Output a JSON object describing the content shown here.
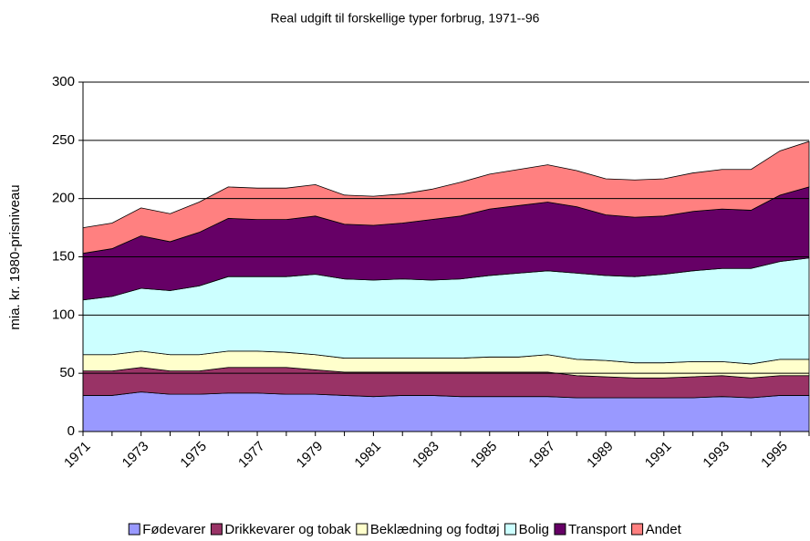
{
  "chart_data": {
    "type": "stacked-area",
    "title": "Real udgift til forskellige typer forbrug, 1971--96",
    "y_label": "mia. kr. 1980-prisniveau",
    "categories": [
      "1971",
      null,
      "1973",
      null,
      "1975",
      null,
      "1977",
      null,
      "1979",
      null,
      "1981",
      null,
      "1983",
      null,
      "1985",
      null,
      "1987",
      null,
      "1989",
      null,
      "1991",
      null,
      "1993",
      null,
      "1995",
      null
    ],
    "ylim": [
      0,
      300
    ],
    "yticks": [
      0,
      50,
      100,
      150,
      200,
      250,
      300
    ],
    "grid": true,
    "series": [
      {
        "name": "Fødevarer",
        "color": "#9999ff",
        "values": [
          31,
          31,
          34,
          32,
          32,
          33,
          33,
          32,
          32,
          31,
          30,
          31,
          31,
          30,
          30,
          30,
          30,
          29,
          29,
          29,
          29,
          29,
          30,
          29,
          31,
          31
        ]
      },
      {
        "name": "Drikkevarer og tobak",
        "color": "#993366",
        "values": [
          21,
          21,
          21,
          20,
          20,
          22,
          22,
          23,
          21,
          20,
          21,
          20,
          20,
          21,
          21,
          21,
          21,
          19,
          18,
          17,
          17,
          18,
          18,
          17,
          17,
          17
        ]
      },
      {
        "name": "Beklædning og fodtøj",
        "color": "#ffffcc",
        "values": [
          14,
          14,
          14,
          14,
          14,
          14,
          14,
          13,
          13,
          12,
          12,
          12,
          12,
          12,
          13,
          13,
          15,
          14,
          14,
          13,
          13,
          13,
          12,
          12,
          14,
          14
        ]
      },
      {
        "name": "Bolig",
        "color": "#ccffff",
        "values": [
          47,
          50,
          54,
          55,
          59,
          64,
          64,
          65,
          69,
          68,
          67,
          68,
          67,
          68,
          70,
          72,
          72,
          74,
          73,
          74,
          76,
          78,
          80,
          82,
          84,
          87
        ]
      },
      {
        "name": "Transport",
        "color": "#660066",
        "values": [
          40,
          41,
          45,
          42,
          46,
          50,
          49,
          49,
          50,
          47,
          47,
          48,
          52,
          54,
          57,
          58,
          59,
          57,
          52,
          51,
          50,
          51,
          51,
          50,
          57,
          61
        ]
      },
      {
        "name": "Andet",
        "color": "#ff8080",
        "values": [
          22,
          22,
          24,
          24,
          26,
          27,
          27,
          27,
          27,
          25,
          25,
          25,
          26,
          29,
          30,
          31,
          32,
          31,
          31,
          32,
          32,
          33,
          34,
          35,
          38,
          39
        ]
      }
    ],
    "legend": "bottom"
  }
}
